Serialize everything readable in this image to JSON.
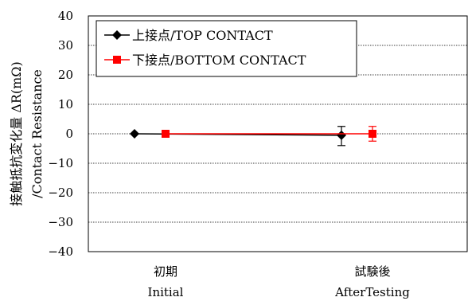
{
  "chart_data": {
    "type": "scatter",
    "ylabel": "接触抵抗変化量 ΔR(mΩ)",
    "ylabel_2": "/Contact Resistance",
    "ylim": [
      -40,
      40
    ],
    "yticks": [
      -40,
      -30,
      -20,
      -10,
      0,
      10,
      20,
      30,
      40
    ],
    "yticks_text": [
      "−40",
      "−30",
      "−20",
      "−10",
      "0",
      "10",
      "20",
      "30",
      "40"
    ],
    "categories": [
      {
        "label_jp": "初期",
        "label_en": "Initial"
      },
      {
        "label_jp": "試験後",
        "label_en": "AfterTesting"
      }
    ],
    "grid": true,
    "legend_position": "top-left",
    "series": [
      {
        "name": "上接点/TOP CONTACT",
        "color": "#000000",
        "marker": "diamond",
        "values": [
          0,
          -0.5
        ],
        "error_low": [
          0,
          -4
        ],
        "error_high": [
          0,
          2.5
        ]
      },
      {
        "name": "下接点/BOTTOM CONTACT",
        "color": "#ff0000",
        "marker": "square",
        "values": [
          0,
          0
        ],
        "error_low": [
          0,
          -2.5
        ],
        "error_high": [
          0,
          2.5
        ]
      }
    ]
  }
}
